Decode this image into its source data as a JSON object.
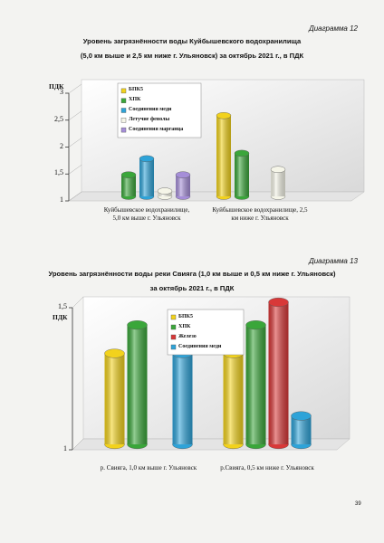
{
  "chart_data": [
    {
      "type": "bar",
      "caption": "Диаграмма 12",
      "title": "Уровень загрязнённости воды Куйбышевского водохранилища\n(5,0 км выше и 2,5 км ниже г. Ульяновск) за октябрь 2021 г., в ПДК",
      "y_label": "ПДК",
      "categories": [
        "Куйбышевское водохранилище,\n5,0 км выше г. Ульяновск",
        "Куйбышевское водохранилище, 2,5\nкм ниже г. Ульяновск"
      ],
      "series": [
        {
          "name": "БПК5",
          "color": "#f2d21c",
          "values": [
            null,
            2.5
          ]
        },
        {
          "name": "ХПК",
          "color": "#3aa63a",
          "values": [
            1.4,
            1.8
          ]
        },
        {
          "name": "Соединения меди",
          "color": "#2ea3d8",
          "values": [
            1.7,
            null
          ]
        },
        {
          "name": "Летучие фенолы",
          "color": "#f5f5e8",
          "values": [
            1.1,
            1.5
          ]
        },
        {
          "name": "Соединения марганца",
          "color": "#a58ed8",
          "values": [
            1.4,
            null
          ]
        }
      ],
      "ylim": [
        1,
        3
      ],
      "yticks": [
        1,
        {
          "value": 1.5,
          "label": "1,5"
        },
        2,
        {
          "value": 2.5,
          "label": "2,5"
        },
        3
      ]
    },
    {
      "type": "bar",
      "caption": "Диаграмма 13",
      "title": "Уровень загрязнённости воды реки Свияга (1,0 км выше и 0,5 км ниже г. Ульяновск)\nза октябрь 2021 г., в ПДК",
      "y_label": "ПДК",
      "categories": [
        "р. Свияга, 1,0 км выше г. Ульяновск",
        "р.Свияга, 0,5 км ниже г. Ульяновск"
      ],
      "series": [
        {
          "name": "БПК5",
          "color": "#f2d21c",
          "values": [
            1.32,
            1.32
          ]
        },
        {
          "name": "ХПК",
          "color": "#3aa63a",
          "values": [
            1.42,
            1.42
          ]
        },
        {
          "name": "Железо",
          "color": "#d83838",
          "values": [
            null,
            1.5
          ]
        },
        {
          "name": "Соединения меди",
          "color": "#2ea3d8",
          "values": [
            1.32,
            1.1
          ]
        }
      ],
      "ylim": [
        1,
        1.5
      ],
      "yticks": [
        1,
        {
          "value": 1.5,
          "label": "1,5"
        }
      ]
    }
  ],
  "page_number": "39"
}
